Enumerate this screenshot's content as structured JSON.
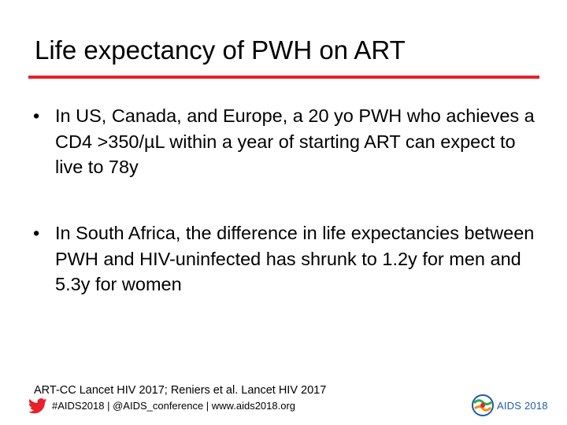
{
  "slide": {
    "title": "Life expectancy of PWH on ART",
    "accent_color": "#e8202a",
    "bullets": [
      {
        "marker": "•",
        "text": "In US, Canada, and Europe, a 20 yo PWH who achieves a CD4 >350/µL within a year of starting ART can expect to live to 78y"
      },
      {
        "marker": "•",
        "text": "In South Africa, the difference in life expectancies between PWH and HIV-uninfected has shrunk to 1.2y for men and 5.3y for women"
      }
    ],
    "references": "ART-CC Lancet HIV 2017; Reniers et al. Lancet HIV 2017"
  },
  "footer": {
    "social_icon": "twitter-bird-icon",
    "social_icon_color": "#e8202a",
    "handles": "#AIDS2018 | @AIDS_conference | www.aids2018.org",
    "logo_icon": "aids2018-globe-icon",
    "logo_text": "AIDS 2018",
    "logo_color": "#1e5aa8"
  }
}
